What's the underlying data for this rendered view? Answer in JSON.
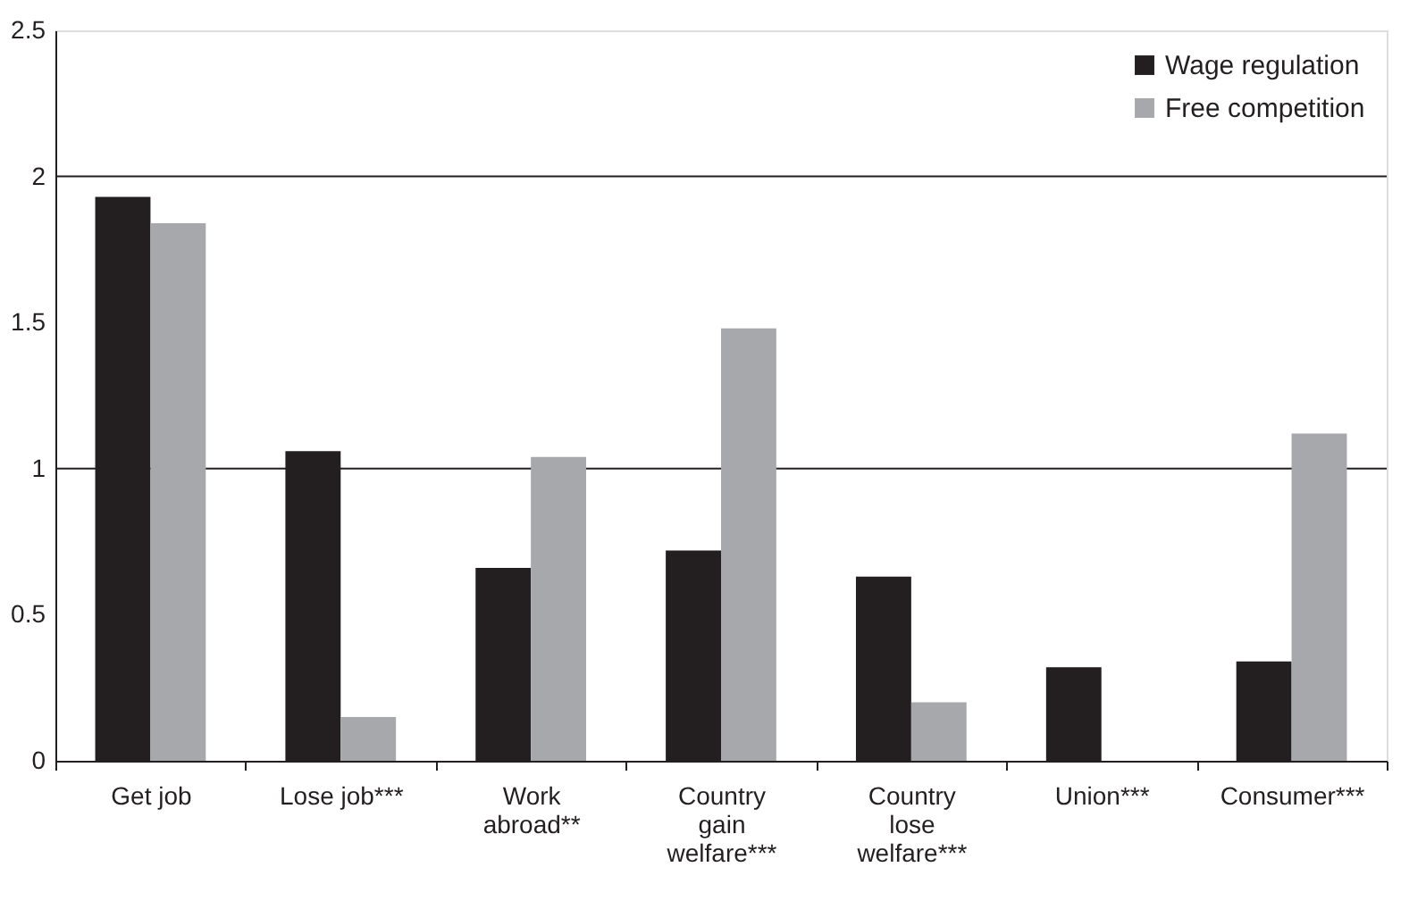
{
  "chart_data": {
    "type": "bar",
    "categories": [
      "Get job",
      "Lose job***",
      "Work\nabroad**",
      "Country\ngain\nwelfare***",
      "Country\nlose\nwelfare***",
      "Union***",
      "Consumer***"
    ],
    "series": [
      {
        "name": "Wage regulation",
        "color": "#231f20",
        "values": [
          1.93,
          1.06,
          0.66,
          0.72,
          0.63,
          0.32,
          0.34
        ]
      },
      {
        "name": "Free competition",
        "color": "#a7a8ab",
        "values": [
          1.84,
          0.15,
          1.04,
          1.48,
          0.2,
          0,
          1.12
        ]
      }
    ],
    "ylim": [
      0,
      2.5
    ],
    "yticks": [
      0,
      0.5,
      1,
      1.5,
      2,
      2.5
    ],
    "ref_lines": [
      {
        "axis": "y",
        "value": 1
      },
      {
        "axis": "y",
        "value": 2
      }
    ],
    "legend": "top right"
  }
}
